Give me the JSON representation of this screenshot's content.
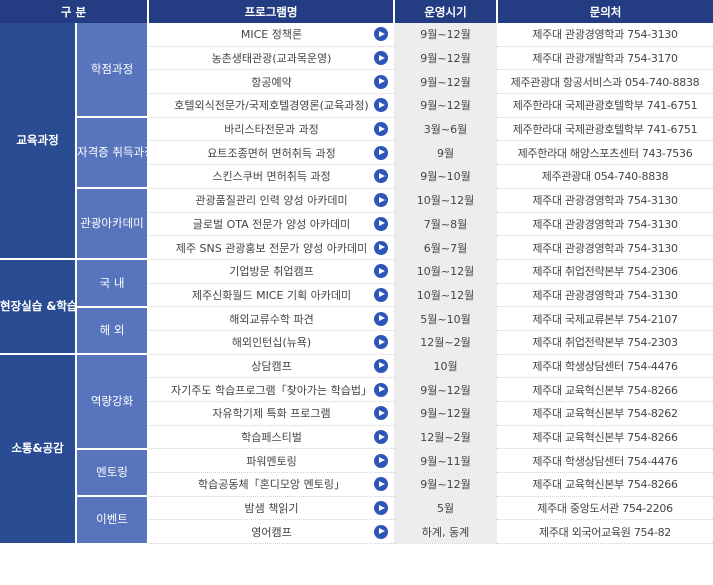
{
  "headers": [
    "구 분",
    "프로그램명",
    "운영시기",
    "문의처"
  ],
  "categories": [
    {
      "label": "교육과정",
      "subs": [
        {
          "label": "학점과정",
          "rows": [
            {
              "name": "MICE 정책론",
              "period": "9월~12월",
              "contact": "제주대 관광경영학과   754-3130"
            },
            {
              "name": "농촌생태관광(교과목운영)",
              "period": "9월~12월",
              "contact": "제주대 관광개발학과   754-3170"
            },
            {
              "name": "항공예약",
              "period": "9월~12월",
              "contact": "제주관광대 항공서비스과   054-740-8838"
            },
            {
              "name": "호텔외식전문가/국제호텔경영론(교육과정)",
              "period": "9월~12월",
              "contact": "제주한라대 국제관광호텔학부   741-6751"
            }
          ]
        },
        {
          "label": "자격증 취득과정",
          "rows": [
            {
              "name": "바리스타전문과 과정",
              "period": "3월~6월",
              "contact": "제주한라대 국제관광호텔학부   741-6751"
            },
            {
              "name": "요트조종면허 면허취득 과정",
              "period": "9월",
              "contact": "제주한라대 해양스포츠센터   743-7536"
            },
            {
              "name": "스킨스쿠버 면허취득 과정",
              "period": "9월~10월",
              "contact": "제주관광대   054-740-8838"
            }
          ]
        },
        {
          "label": "관광아카데미",
          "rows": [
            {
              "name": "관광품질관리 인력 양성 아카데미",
              "period": "10월~12월",
              "contact": "제주대 관광경영학과   754-3130"
            },
            {
              "name": "글로벌 OTA 전문가 양성 아카데미",
              "period": "7월~8월",
              "contact": "제주대 관광경영학과   754-3130"
            },
            {
              "name": "제주 SNS 관광홍보 전문가 양성 아카데미",
              "period": "6월~7월",
              "contact": "제주대 관광경영학과   754-3130"
            }
          ]
        }
      ]
    },
    {
      "label": "현장실습 &학습",
      "subs": [
        {
          "label": "국 내",
          "rows": [
            {
              "name": "기업방문 취업캠프",
              "period": "10월~12월",
              "contact": "제주대 취업전략본부   754-2306"
            },
            {
              "name": "제주신화월드 MICE 기획 아카데미",
              "period": "10월~12월",
              "contact": "제주대 관광경영학과   754-3130"
            }
          ]
        },
        {
          "label": "해 외",
          "rows": [
            {
              "name": "해외교류수학 파견",
              "period": "5월~10월",
              "contact": "제주대 국제교류본부   754-2107"
            },
            {
              "name": "해외인턴십(뉴욕)",
              "period": "12월~2월",
              "contact": "제주대 취업전략본부   754-2303"
            }
          ]
        }
      ]
    },
    {
      "label": "소통&공감",
      "subs": [
        {
          "label": "역량강화",
          "rows": [
            {
              "name": "상담캠프",
              "period": "10월",
              "contact": "제주대 학생상담센터   754-4476"
            },
            {
              "name": "자기주도 학습프로그램「찾아가는 학습법」",
              "period": "9월~12월",
              "contact": "제주대 교육혁신본부   754-8266"
            },
            {
              "name": "자유학기제 특화 프로그램",
              "period": "9월~12월",
              "contact": "제주대 교육혁신본부   754-8262"
            },
            {
              "name": "학습페스티벌",
              "period": "12월~2월",
              "contact": "제주대 교육혁신본부   754-8266"
            }
          ]
        },
        {
          "label": "멘토링",
          "rows": [
            {
              "name": "파워멘토링",
              "period": "9월~11월",
              "contact": "제주대 학생상담센터   754-4476"
            },
            {
              "name": "학습공동체「혼디모앙 멘토링」",
              "period": "9월~12월",
              "contact": "제주대 교육혁신본부   754-8266"
            }
          ]
        },
        {
          "label": "이벤트",
          "rows": [
            {
              "name": "밤샘 책읽기",
              "period": "5월",
              "contact": "제주대 중앙도서관   754-2206"
            },
            {
              "name": "영어캠프",
              "period": "하계, 동계",
              "contact": "제주대 외국어교육원   754-82"
            }
          ]
        }
      ]
    }
  ]
}
